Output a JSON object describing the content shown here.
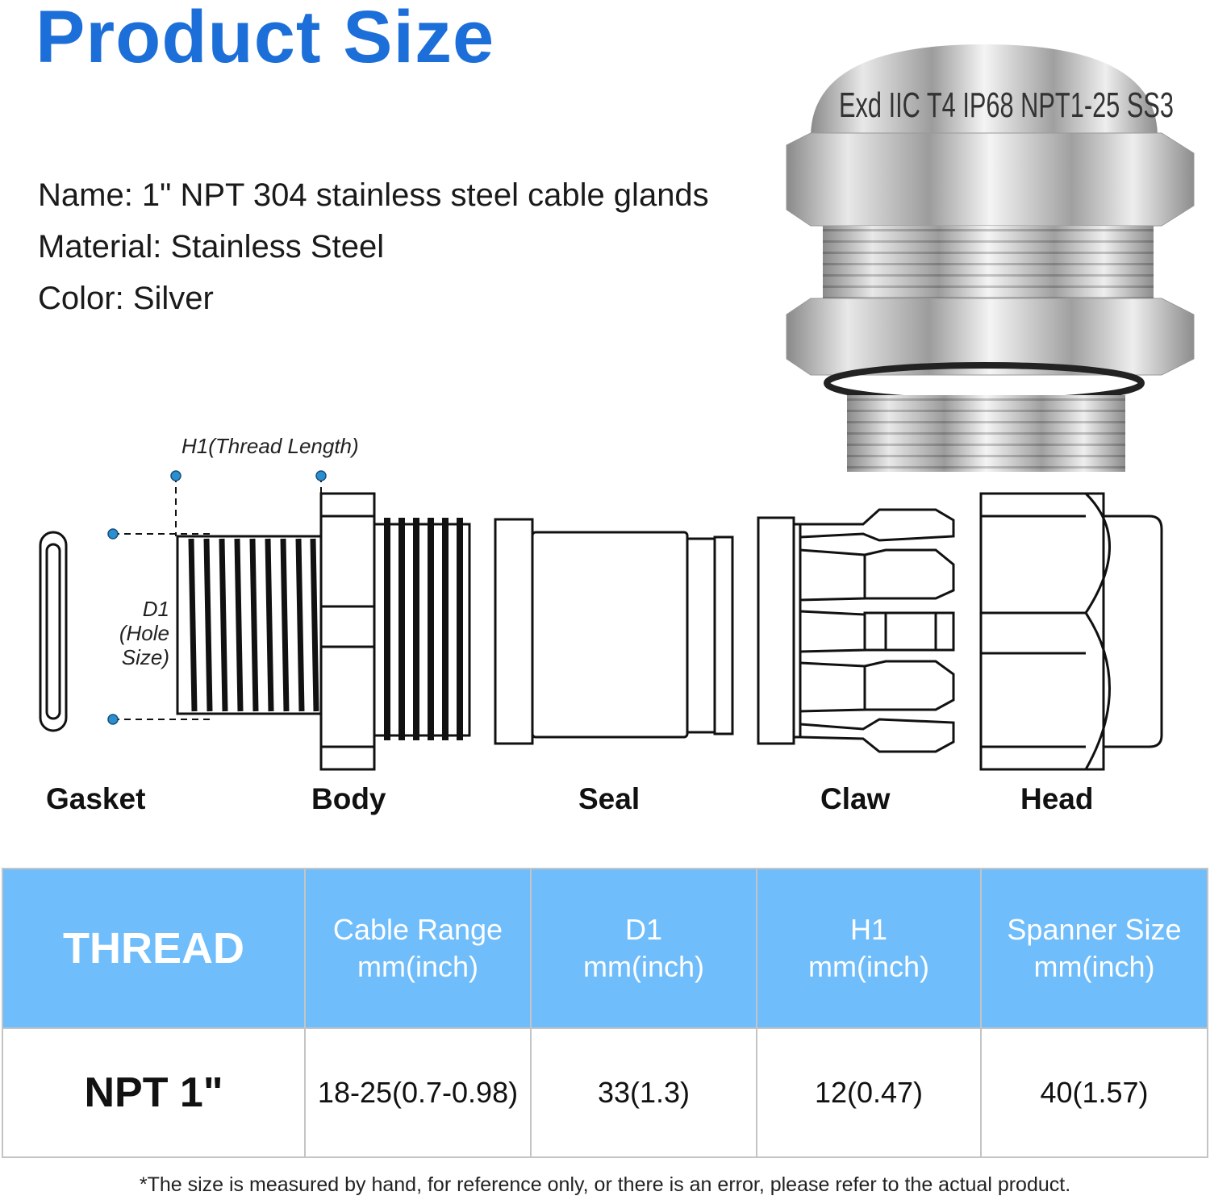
{
  "title": "Product Size",
  "specs": {
    "name": "Name: 1\" NPT 304 stainless steel cable glands",
    "material": "Material: Stainless Steel",
    "color": "Color: Silver"
  },
  "product_photo": {
    "engraving": "Exd IIC T4 IP68 NPT1-25 SS3"
  },
  "diagram": {
    "h1_label": "H1(Thread Length)",
    "d1_label": "D1",
    "d1_sublabel": "(Hole Size)",
    "dot_color": "#2a8fd0",
    "parts": [
      "Gasket",
      "Body",
      "Seal",
      "Claw",
      "Head"
    ]
  },
  "table": {
    "header_color": "#6fbdfb",
    "headers": [
      {
        "line1": "THREAD",
        "line2": ""
      },
      {
        "line1": "Cable Range",
        "line2": "mm(inch)"
      },
      {
        "line1": "D1",
        "line2": "mm(inch)"
      },
      {
        "line1": "H1",
        "line2": "mm(inch)"
      },
      {
        "line1": "Spanner Size",
        "line2": "mm(inch)"
      }
    ],
    "rows": [
      [
        "NPT 1\"",
        "18-25(0.7-0.98)",
        "33(1.3)",
        "12(0.47)",
        "40(1.57)"
      ]
    ]
  },
  "footnote": "*The size is measured by hand, for reference only, or there is an error, please refer to the actual product."
}
